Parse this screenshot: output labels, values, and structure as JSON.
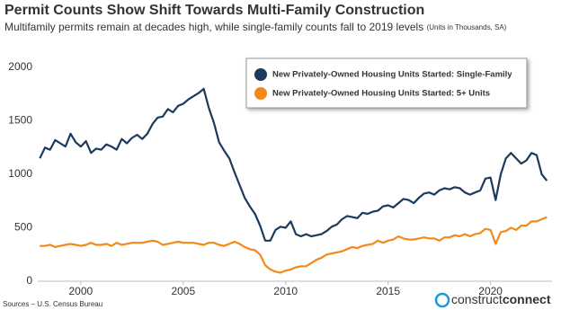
{
  "chart_data": {
    "type": "line",
    "title": "Permit Counts Show Shift Towards Multi-Family Construction",
    "subtitle": "Multifamily permits remain at decades high, while single-family counts fall to 2019 levels",
    "units_note": "(Units in Thousands, SA)",
    "source": "Sources – U.S. Census Bureau",
    "logo": {
      "light": "construct",
      "bold": "connect"
    },
    "legend_position": "upper right",
    "xlim": [
      1997.9,
      2023.0
    ],
    "ylim": [
      0,
      2000
    ],
    "xticks": [
      2000,
      2005,
      2010,
      2015,
      2020
    ],
    "yticks": [
      0,
      500,
      1000,
      1500,
      2000
    ],
    "x": [
      1998,
      1998.25,
      1998.5,
      1998.75,
      1999,
      1999.25,
      1999.5,
      1999.75,
      2000,
      2000.25,
      2000.5,
      2000.75,
      2001,
      2001.25,
      2001.5,
      2001.75,
      2002,
      2002.25,
      2002.5,
      2002.75,
      2003,
      2003.25,
      2003.5,
      2003.75,
      2004,
      2004.25,
      2004.5,
      2004.75,
      2005,
      2005.25,
      2005.5,
      2005.75,
      2006,
      2006.25,
      2006.5,
      2006.75,
      2007,
      2007.25,
      2007.5,
      2007.75,
      2008,
      2008.25,
      2008.5,
      2008.75,
      2009,
      2009.25,
      2009.5,
      2009.75,
      2010,
      2010.25,
      2010.5,
      2010.75,
      2011,
      2011.25,
      2011.5,
      2011.75,
      2012,
      2012.25,
      2012.5,
      2012.75,
      2013,
      2013.25,
      2013.5,
      2013.75,
      2014,
      2014.25,
      2014.5,
      2014.75,
      2015,
      2015.25,
      2015.5,
      2015.75,
      2016,
      2016.25,
      2016.5,
      2016.75,
      2017,
      2017.25,
      2017.5,
      2017.75,
      2018,
      2018.25,
      2018.5,
      2018.75,
      2019,
      2019.25,
      2019.5,
      2019.75,
      2020,
      2020.25,
      2020.5,
      2020.75,
      2021,
      2021.25,
      2021.5,
      2021.75,
      2022,
      2022.25,
      2022.5,
      2022.75
    ],
    "series": [
      {
        "name": "New Privately-Owned Housing Units Started:  Single-Family",
        "color": "#1b3a5c",
        "values": [
          1150,
          1250,
          1230,
          1320,
          1290,
          1260,
          1380,
          1300,
          1260,
          1310,
          1200,
          1240,
          1230,
          1280,
          1260,
          1230,
          1330,
          1290,
          1340,
          1370,
          1330,
          1380,
          1470,
          1530,
          1540,
          1610,
          1580,
          1640,
          1660,
          1700,
          1730,
          1760,
          1800,
          1620,
          1480,
          1300,
          1220,
          1150,
          1020,
          900,
          780,
          700,
          630,
          520,
          380,
          380,
          480,
          510,
          500,
          560,
          440,
          420,
          440,
          420,
          430,
          440,
          470,
          510,
          530,
          580,
          610,
          600,
          590,
          640,
          630,
          650,
          660,
          700,
          710,
          690,
          730,
          770,
          760,
          730,
          780,
          820,
          830,
          810,
          850,
          870,
          860,
          880,
          870,
          830,
          810,
          830,
          850,
          960,
          970,
          760,
          1000,
          1150,
          1200,
          1150,
          1100,
          1130,
          1200,
          1180,
          1000,
          940
        ]
      },
      {
        "name": "New Privately-Owned Housing Units Started: 5+ Units",
        "color": "#f28a1a",
        "values": [
          330,
          330,
          340,
          320,
          330,
          340,
          350,
          340,
          330,
          340,
          360,
          340,
          340,
          350,
          330,
          360,
          340,
          350,
          360,
          360,
          360,
          370,
          380,
          370,
          340,
          350,
          360,
          370,
          360,
          360,
          360,
          350,
          340,
          360,
          360,
          340,
          330,
          350,
          370,
          350,
          320,
          300,
          290,
          250,
          150,
          110,
          90,
          80,
          100,
          110,
          130,
          140,
          140,
          170,
          200,
          220,
          250,
          260,
          270,
          280,
          300,
          320,
          310,
          330,
          340,
          350,
          380,
          360,
          380,
          390,
          420,
          400,
          390,
          390,
          400,
          410,
          400,
          400,
          380,
          410,
          410,
          430,
          420,
          440,
          420,
          440,
          450,
          490,
          480,
          350,
          460,
          470,
          500,
          480,
          520,
          520,
          560,
          560,
          580,
          600
        ]
      }
    ]
  }
}
